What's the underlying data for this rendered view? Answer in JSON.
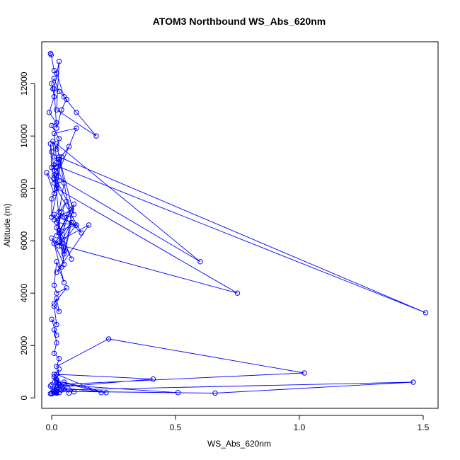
{
  "chart_data": {
    "type": "line",
    "title": "ATOM3 Northbound WS_Abs_620nm",
    "xlabel": "WS_Abs_620nm",
    "ylabel": "Altitude (m)",
    "xlim": [
      -0.04,
      1.56
    ],
    "ylim": [
      -400,
      13600
    ],
    "xticks": [
      0.0,
      0.5,
      1.0,
      1.5
    ],
    "xtick_labels": [
      "0.0",
      "0.5",
      "1.0",
      "1.5"
    ],
    "yticks": [
      0,
      2000,
      4000,
      6000,
      8000,
      10000,
      12000
    ],
    "ytick_labels": [
      "0",
      "2000",
      "4000",
      "6000",
      "8000",
      "10000",
      "12000"
    ],
    "grid": false,
    "legend": "none",
    "series_color": "#0000ff",
    "marker": "open-circle",
    "series": [
      {
        "x": [
          -0.005,
          -0.002,
          0.01,
          0.02,
          0.05,
          0.1,
          0.18,
          0.02,
          0.03,
          0.01,
          0.02,
          0.04,
          0.06,
          0.03,
          0.01,
          0.0,
          0.005,
          0.01,
          -0.01,
          0.02,
          0.0,
          0.03,
          0.02,
          0.005,
          0.01,
          0.03,
          0.02,
          0.01,
          0.0,
          -0.005,
          0.0,
          0.01,
          0.02,
          -0.02,
          0.01,
          0.03,
          0.07,
          0.02,
          0.01,
          0.1,
          0.01,
          0.04,
          0.02,
          0.0,
          0.0,
          0.03,
          0.02,
          0.05,
          0.03,
          0.06,
          0.02,
          0.1,
          0.01,
          0.08,
          0.02,
          0.04,
          0.02,
          0.08,
          0.01,
          0.07,
          0.03,
          0.05,
          0.09,
          0.03,
          0.05,
          0.0,
          0.04,
          0.01,
          1.51,
          0.03,
          0.09,
          0.01,
          0.6,
          0.02,
          0.08,
          0.01,
          0.75,
          0.02,
          0.12,
          0.05,
          0.05,
          0.03,
          0.1,
          0.03,
          0.08,
          0.04,
          0.02,
          0.15,
          0.01,
          0.05,
          0.02,
          0.01,
          0.02,
          0.06,
          0.01,
          0.02,
          0.03,
          0.01,
          0.02,
          0.0,
          0.02,
          0.01,
          0.02,
          0.01,
          0.03,
          0.02,
          0.23,
          1.02,
          0.0,
          0.01,
          0.03,
          0.02,
          0.2,
          0.02,
          0.41,
          0.02,
          0.22,
          0.05,
          0.09,
          0.05,
          0.02,
          0.01,
          0.07,
          0.02,
          0.03,
          0.51,
          0.02,
          0.66,
          1.46,
          0.04,
          0.01,
          0.03,
          0.02,
          0.01,
          0.02,
          -0.005,
          0.0,
          0.02,
          0.01,
          0.03,
          0.02,
          0.0,
          0.02,
          0.01,
          -0.005
        ],
        "y": [
          13150,
          13100,
          12500,
          12400,
          11500,
          10900,
          10000,
          11000,
          12850,
          11800,
          10300,
          11000,
          11400,
          11700,
          12200,
          12000,
          11800,
          11500,
          10900,
          10500,
          10400,
          9900,
          9500,
          9800,
          9200,
          9000,
          8500,
          8700,
          9400,
          9700,
          8800,
          8400,
          8100,
          8600,
          7800,
          9100,
          9600,
          9000,
          10100,
          10300,
          8200,
          9200,
          8000,
          7600,
          6900,
          8300,
          8800,
          8200,
          7100,
          7500,
          6700,
          6600,
          7000,
          5300,
          6500,
          7100,
          6200,
          7200,
          6800,
          7000,
          6000,
          5500,
          7400,
          6300,
          5100,
          6100,
          5800,
          8900,
          3250,
          9200,
          7000,
          8500,
          5200,
          9700,
          6700,
          5900,
          4000,
          8000,
          6300,
          6900,
          5600,
          6400,
          6600,
          5800,
          6700,
          5000,
          4800,
          6600,
          5900,
          4400,
          5200,
          4300,
          4000,
          4200,
          3600,
          3800,
          3300,
          3500,
          2800,
          3000,
          2400,
          2600,
          2100,
          1700,
          1500,
          1200,
          2250,
          950,
          500,
          800,
          1100,
          650,
          200,
          900,
          720,
          400,
          200,
          600,
          230,
          350,
          180,
          900,
          180,
          700,
          500,
          200,
          250,
          180,
          600,
          300,
          800,
          400,
          600,
          300,
          200,
          450,
          150,
          400,
          250,
          200,
          250,
          180,
          220,
          200,
          160
        ]
      }
    ]
  }
}
